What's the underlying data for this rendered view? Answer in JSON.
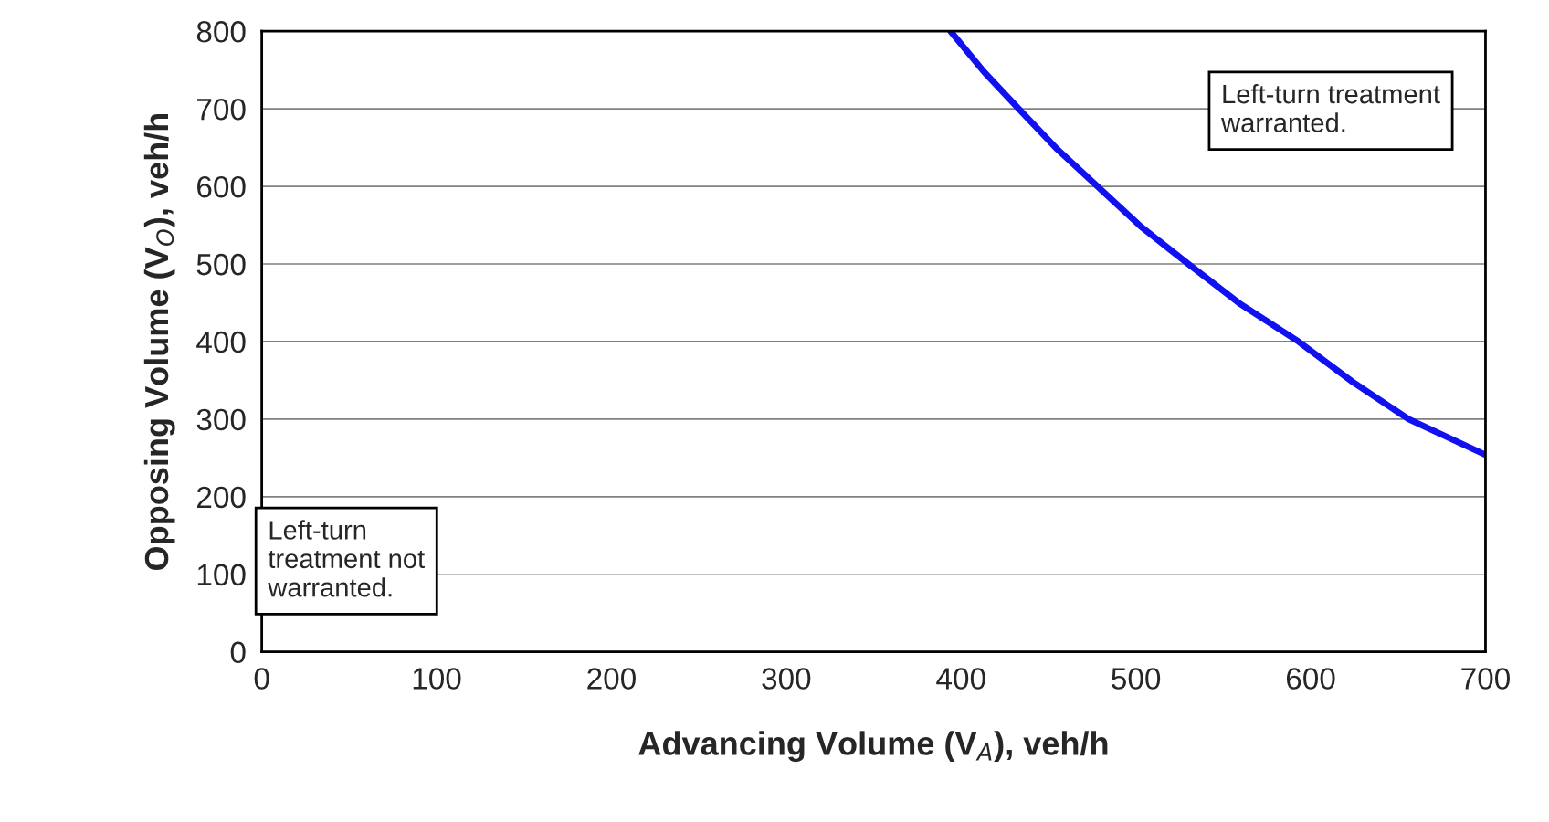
{
  "chart_data": {
    "type": "line",
    "xlabel": "Advancing Volume (V$_{A}$), veh/h",
    "ylabel": "Opposing Volume (V$_{O}$), veh/h",
    "x": [
      394,
      413,
      433,
      455,
      478,
      503,
      530,
      560,
      593,
      624,
      656,
      700
    ],
    "series": [
      {
        "color": "#1010f0",
        "values": [
          800,
          748,
          700,
          648,
          600,
          548,
          500,
          448,
          400,
          348,
          300,
          254
        ]
      }
    ],
    "xlim": [
      0,
      700
    ],
    "ylim": [
      0,
      800
    ],
    "xticks": [
      0,
      100,
      200,
      300,
      400,
      500,
      600,
      700
    ],
    "yticks": [
      0,
      100,
      200,
      300,
      400,
      500,
      600,
      700,
      800
    ],
    "grid": "y",
    "legend": false,
    "marker": "none",
    "line_style": "solid",
    "annotations": [
      "Left-turn treatment\nwarranted.",
      "Left-turn\ntreatment not\nwarranted."
    ]
  }
}
